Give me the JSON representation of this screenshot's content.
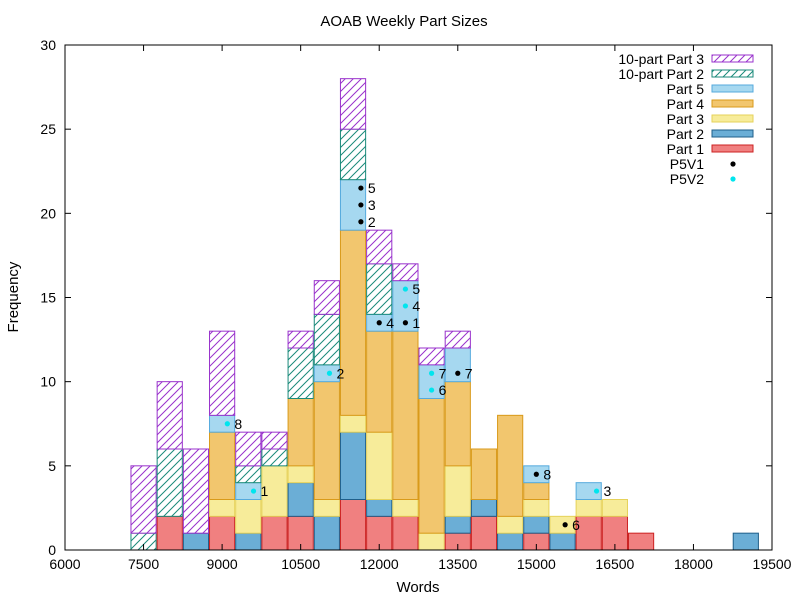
{
  "chart_data": {
    "type": "bar",
    "stacked": true,
    "title": "AOAB Weekly Part Sizes",
    "xlabel": "Words",
    "ylabel": "Frequency",
    "xlim": [
      6000,
      19500
    ],
    "ylim": [
      0,
      30
    ],
    "bin_width": 500,
    "x_ticks": [
      "6000",
      "7500",
      "9000",
      "10500",
      "12000",
      "13500",
      "15000",
      "16500",
      "18000",
      "19500"
    ],
    "y_ticks": [
      "0",
      "5",
      "10",
      "15",
      "20",
      "25",
      "30"
    ],
    "legend_placement": "top-right",
    "bin_starts": [
      7250,
      7750,
      8250,
      8750,
      9250,
      9750,
      10250,
      10750,
      11250,
      11750,
      12250,
      12750,
      13250,
      13750,
      14250,
      14750,
      15250,
      15750,
      16250,
      16750,
      18750
    ],
    "series": [
      {
        "name": "Part 1",
        "color": "#f08080",
        "hatch": false,
        "values": [
          0,
          2,
          0,
          2,
          0,
          2,
          2,
          0,
          3,
          2,
          2,
          0,
          1,
          2,
          0,
          1,
          0,
          2,
          2,
          1,
          0
        ]
      },
      {
        "name": "Part 2",
        "color": "#6baed6",
        "hatch": false,
        "values": [
          0,
          0,
          1,
          0,
          1,
          0,
          2,
          2,
          4,
          1,
          0,
          0,
          1,
          1,
          1,
          1,
          1,
          0,
          0,
          0,
          1
        ]
      },
      {
        "name": "Part 3",
        "color": "#f7ec9a",
        "hatch": false,
        "values": [
          0,
          0,
          0,
          1,
          2,
          3,
          1,
          1,
          1,
          4,
          1,
          1,
          3,
          0,
          1,
          1,
          1,
          1,
          1,
          0,
          0
        ]
      },
      {
        "name": "Part 4",
        "color": "#f2c66e",
        "hatch": false,
        "values": [
          0,
          0,
          0,
          4,
          0,
          0,
          4,
          7,
          11,
          6,
          10,
          8,
          5,
          3,
          6,
          1,
          0,
          0,
          0,
          0,
          0
        ]
      },
      {
        "name": "Part 5",
        "color": "#a6d8f0",
        "hatch": false,
        "values": [
          0,
          0,
          0,
          1,
          1,
          0,
          0,
          1,
          3,
          1,
          3,
          2,
          2,
          0,
          0,
          1,
          0,
          1,
          0,
          0,
          0
        ]
      },
      {
        "name": "10-part Part 2",
        "color": "#1a8a7a",
        "hatch": true,
        "values": [
          1,
          4,
          0,
          0,
          1,
          1,
          3,
          3,
          3,
          3,
          0,
          0,
          0,
          0,
          0,
          0,
          0,
          0,
          0,
          0,
          0
        ]
      },
      {
        "name": "10-part Part 3",
        "color": "#9932cc",
        "hatch": true,
        "values": [
          4,
          4,
          5,
          5,
          2,
          1,
          1,
          2,
          3,
          2,
          1,
          1,
          1,
          0,
          0,
          0,
          0,
          0,
          0,
          0,
          0
        ]
      }
    ],
    "points": [
      {
        "name": "P5V1",
        "color": "#000000",
        "items": [
          {
            "x": 11650,
            "y": 21.5,
            "label": "5"
          },
          {
            "x": 11650,
            "y": 20.5,
            "label": "3"
          },
          {
            "x": 11650,
            "y": 19.5,
            "label": "2"
          },
          {
            "x": 12000,
            "y": 13.5,
            "label": "4"
          },
          {
            "x": 12500,
            "y": 13.5,
            "label": "1"
          },
          {
            "x": 13500,
            "y": 10.5,
            "label": "7"
          },
          {
            "x": 15000,
            "y": 4.5,
            "label": "8"
          },
          {
            "x": 15550,
            "y": 1.5,
            "label": "6"
          }
        ]
      },
      {
        "name": "P5V2",
        "color": "#00e5ee",
        "items": [
          {
            "x": 9100,
            "y": 7.5,
            "label": "8"
          },
          {
            "x": 9600,
            "y": 3.5,
            "label": "1"
          },
          {
            "x": 11050,
            "y": 10.5,
            "label": "2"
          },
          {
            "x": 12500,
            "y": 15.5,
            "label": "5"
          },
          {
            "x": 12500,
            "y": 14.5,
            "label": "4"
          },
          {
            "x": 13000,
            "y": 10.5,
            "label": "7"
          },
          {
            "x": 13000,
            "y": 9.5,
            "label": "6"
          },
          {
            "x": 16150,
            "y": 3.5,
            "label": "3"
          }
        ]
      }
    ],
    "legend": [
      "10-part Part 3",
      "10-part Part 2",
      "Part 5",
      "Part 4",
      "Part 3",
      "Part 2",
      "Part 1",
      "P5V1",
      "P5V2"
    ]
  }
}
